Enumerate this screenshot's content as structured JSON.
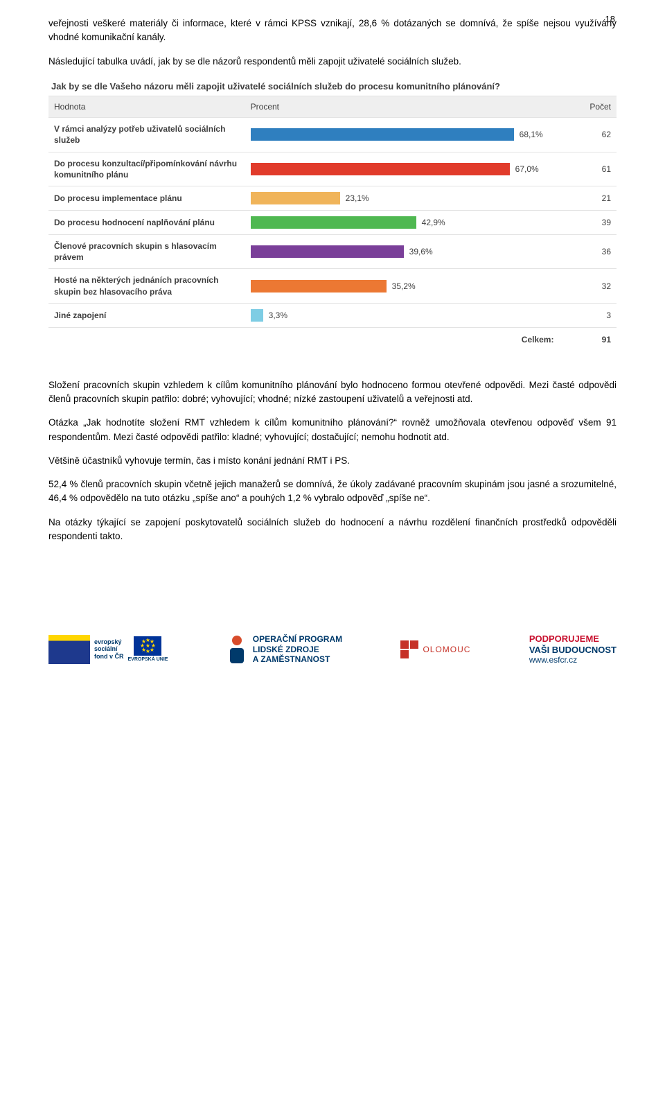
{
  "page_number": "18",
  "para1": "veřejnosti veškeré materiály či informace, které v rámci KPSS vznikají, 28,6 % dotázaných se domnívá, že spíše nejsou využívány vhodné komunikační kanály.",
  "para2": "Následující tabulka uvádí, jak by se dle názorů respondentů měli zapojit uživatelé sociálních služeb.",
  "chart": {
    "title": "Jak by se dle Vašeho názoru měli zapojit uživatelé sociálních služeb do procesu komunitního plánování?",
    "header_value": "Hodnota",
    "header_percent": "Procent",
    "header_count": "Počet",
    "max_percent": 68.1,
    "rows": [
      {
        "label": "V rámci analýzy potřeb uživatelů sociálních služeb",
        "percent": 68.1,
        "percent_str": "68,1%",
        "count": 62,
        "color": "#2f7fbf"
      },
      {
        "label": "Do procesu konzultací/připomínkování návrhu komunitního plánu",
        "percent": 67.0,
        "percent_str": "67,0%",
        "count": 61,
        "color": "#e13b2b"
      },
      {
        "label": "Do procesu implementace plánu",
        "percent": 23.1,
        "percent_str": "23,1%",
        "count": 21,
        "color": "#f0b45a"
      },
      {
        "label": "Do procesu hodnocení naplňování plánu",
        "percent": 42.9,
        "percent_str": "42,9%",
        "count": 39,
        "color": "#4fb851"
      },
      {
        "label": "Členové pracovních skupin s hlasovacím právem",
        "percent": 39.6,
        "percent_str": "39,6%",
        "count": 36,
        "color": "#7a3f99"
      },
      {
        "label": "Hosté na některých jednáních pracovních skupin bez hlasovacího práva",
        "percent": 35.2,
        "percent_str": "35,2%",
        "count": 32,
        "color": "#ec7833"
      },
      {
        "label": "Jiné zapojení",
        "percent": 3.3,
        "percent_str": "3,3%",
        "count": 3,
        "color": "#7ecde4"
      }
    ],
    "total_label": "Celkem:",
    "total_value": 91
  },
  "para3": "Složení pracovních skupin vzhledem k cílům komunitního plánování bylo hodnoceno formou otevřené odpovědi. Mezi časté odpovědi členů pracovních skupin patřilo: dobré; vyhovující; vhodné; nízké zastoupení uživatelů a veřejnosti atd.",
  "para4": "Otázka „Jak hodnotíte složení RMT vzhledem k cílům komunitního plánování?“ rovněž umožňovala otevřenou odpověď všem 91 respondentům. Mezi časté odpovědi patřilo: kladné; vyhovující; dostačující; nemohu hodnotit atd.",
  "para5": "Většině účastníků vyhovuje termín, čas i místo konání jednání RMT i PS.",
  "para6": "52,4 % členů pracovních skupin včetně jejich manažerů se domnívá, že úkoly zadávané pracovním skupinám jsou jasné a srozumitelné, 46,4 % odpovědělo na tuto otázku „spíše ano“ a pouhých 1,2 % vybralo odpověď „spíše ne“.",
  "para7": "Na otázky týkající se zapojení poskytovatelů sociálních služeb do hodnocení a návrhu rozdělení finančních prostředků odpověděli respondenti takto.",
  "footer": {
    "esf_lines": [
      "evropský",
      "sociální",
      "fond v ČR"
    ],
    "eu_label": "EVROPSKÁ UNIE",
    "op_line1": "OPERAČNÍ PROGRAM",
    "op_line2": "LIDSKÉ ZDROJE",
    "op_line3": "A ZAMĚSTNANOST",
    "olomouc": "OLOMOUC",
    "pod_line1": "PODPORUJEME",
    "pod_line2": "VAŠI BUDOUCNOST",
    "pod_url": "www.esfcr.cz"
  }
}
